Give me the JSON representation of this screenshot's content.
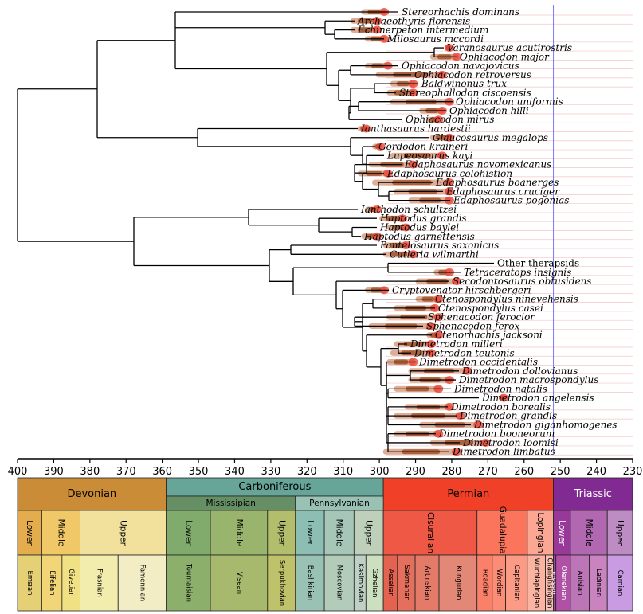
{
  "taxa": [
    "Stereorhachis dominans",
    "Archaeothyris florensis",
    "Echinerpeton intermedium",
    "Milosaurus mccordi",
    "Varanosaurus acutirostris",
    "Ophiacodon major",
    "Ophiacodon navajovicus",
    "Ophiacodon retroversus",
    "Baldwinonus trux",
    "Stereophallodon ciscoensis",
    "Ophiacodon uniformis",
    "Ophiacodon hilli",
    "Ophiacodon mirus",
    "Ianthasaurus hardestii",
    "Glaucosaurus megalops",
    "Gordodon kraineri",
    "Lupeosaurus kayi",
    "Edaphosaurus novomexicanus",
    "Edaphosaurus colohistion",
    "Edaphosaurus boanerges",
    "Edaphosaurus cruciger",
    "Edaphosaurus pogonias",
    "Ianthodon schultzei",
    "Haptodus grandis",
    "Haptodus baylei",
    "Haptodus garnettensis",
    "Pantelosaurus saxonicus",
    "Cutleria wilmarthi",
    "Other therapsids",
    "Tetraceratops insignis",
    "Secodontosaurus obtusidens",
    "Cryptovenator hirschbergeri",
    "Ctenospondylus ninevehensis",
    "Ctenospondylus casei",
    "Sphenacodon ferocior",
    "Sphenacodon ferox",
    "Ctenorhachis jacksoni",
    "Dimetrodon milleri",
    "Dimetrodon teutonis",
    "Dimetrodon occidentalis",
    "Dimetrodon dollovianus",
    "Dimetrodon macrospondylus",
    "Dimetrodon natalis",
    "Dimetrodon angelensis",
    "Dimetrodon borealis",
    "Dimetrodon grandis",
    "Dimetrodon giganhomogenes",
    "Dimetrodon booneorum",
    "Dimetrodon loomisi",
    "Dimetrodon limbatus"
  ],
  "axis": {
    "ticks": [
      "400",
      "390",
      "380",
      "370",
      "360",
      "350",
      "340",
      "330",
      "320",
      "310",
      "300",
      "290",
      "280",
      "270",
      "260",
      "250",
      "240",
      "230"
    ]
  },
  "periods": [
    {
      "name": "Devonian",
      "color": "#cb8c37",
      "text": "#000"
    },
    {
      "name": "Carboniferous",
      "color": "#67a599",
      "text": "#000"
    },
    {
      "name": "Permian",
      "color": "#f04028",
      "text": "#000"
    },
    {
      "name": "Triassic",
      "color": "#812b92",
      "text": "#fff"
    }
  ],
  "subperiods": [
    {
      "name": "Mississipian",
      "color": "#678f66"
    },
    {
      "name": "Pennsylvanian",
      "color": "#99c2b5"
    }
  ],
  "epochs": [
    {
      "name": "Lower",
      "color": "#e5ac4d"
    },
    {
      "name": "Middle",
      "color": "#f1c868"
    },
    {
      "name": "Upper",
      "color": "#f1e19d"
    },
    {
      "name": "Lower",
      "color": "#80ab6c"
    },
    {
      "name": "Middle",
      "color": "#99b46c"
    },
    {
      "name": "Upper",
      "color": "#b3be6c"
    },
    {
      "name": "Lower",
      "color": "#8cbeb4"
    },
    {
      "name": "Middle",
      "color": "#a6c7b7"
    },
    {
      "name": "Upper",
      "color": "#bfd0ba"
    },
    {
      "name": "Cisuralian",
      "color": "#ef5845"
    },
    {
      "name": "Guadalupian",
      "color": "#fb745c"
    },
    {
      "name": "Lopingian",
      "color": "#fba794"
    },
    {
      "name": "Lower",
      "color": "#983999"
    },
    {
      "name": "Middle",
      "color": "#b168b1"
    },
    {
      "name": "Upper",
      "color": "#bd8cc3"
    }
  ],
  "stages": [
    {
      "name": "Emsian",
      "color": "#e5d075"
    },
    {
      "name": "Eifelian",
      "color": "#f1d576"
    },
    {
      "name": "Givetian",
      "color": "#f1e185"
    },
    {
      "name": "Frasnian",
      "color": "#f2edad"
    },
    {
      "name": "Famennian",
      "color": "#f2edc5"
    },
    {
      "name": "Tournaisian",
      "color": "#8cb06c"
    },
    {
      "name": "Visean",
      "color": "#a6b96c"
    },
    {
      "name": "Serpukhovian",
      "color": "#bfc26b"
    },
    {
      "name": "Bashkirian",
      "color": "#99c2b5"
    },
    {
      "name": "Moscovian",
      "color": "#b3cbb9"
    },
    {
      "name": "Kasimovian",
      "color": "#bfd0c5"
    },
    {
      "name": "Gzhelian",
      "color": "#cce0c0"
    },
    {
      "name": "Asselian",
      "color": "#e36350"
    },
    {
      "name": "Sakmarian",
      "color": "#e36f5c"
    },
    {
      "name": "Artinskian",
      "color": "#e37b68"
    },
    {
      "name": "Kungurian",
      "color": "#e38776"
    },
    {
      "name": "Roadian",
      "color": "#fb8069"
    },
    {
      "name": "Wordian",
      "color": "#fb8d76"
    },
    {
      "name": "Capitanian",
      "color": "#fb9a85"
    },
    {
      "name": "Wuchiapingian",
      "color": "#fcb4a2"
    },
    {
      "name": "Changhsingian",
      "color": "#fcc0b2"
    },
    {
      "name": "Induan",
      "color": "#a4469f"
    },
    {
      "name": "Olenekian",
      "color": "#b051a5"
    },
    {
      "name": "Anisian",
      "color": "#bc75b7"
    },
    {
      "name": "Ladinian",
      "color": "#c983bf"
    },
    {
      "name": "Carnian",
      "color": "#c99be3"
    }
  ],
  "colors": {
    "range_light": "#d9a58a",
    "range_dark": "#a0522d",
    "occurrence": "#e8382a",
    "gridline": "#f3c6c6",
    "branch": "#000000",
    "present_line": "#7a7aff"
  }
}
